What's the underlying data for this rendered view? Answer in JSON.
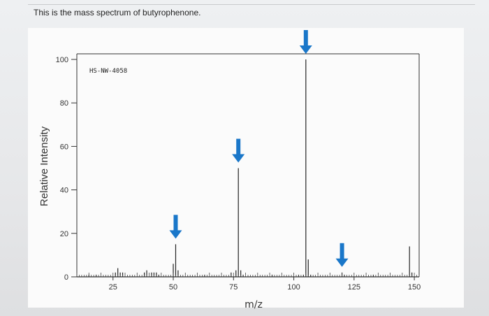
{
  "question": {
    "text": "This is the mass spectrum of butyrophenone."
  },
  "chart_data": {
    "type": "bar",
    "title": "",
    "annotation": "HS-NW-4058",
    "xlabel": "m/z",
    "ylabel": "Relative Intensity",
    "xlim": [
      10,
      152
    ],
    "ylim": [
      0,
      100
    ],
    "x_ticks": [
      25,
      50,
      75,
      100,
      125,
      150
    ],
    "y_ticks": [
      0,
      20,
      40,
      60,
      80,
      100
    ],
    "grid": false,
    "peaks": [
      {
        "mz": 15,
        "intensity": 1
      },
      {
        "mz": 18,
        "intensity": 1
      },
      {
        "mz": 26,
        "intensity": 2
      },
      {
        "mz": 27,
        "intensity": 4
      },
      {
        "mz": 28,
        "intensity": 2
      },
      {
        "mz": 29,
        "intensity": 2
      },
      {
        "mz": 38,
        "intensity": 2
      },
      {
        "mz": 39,
        "intensity": 3
      },
      {
        "mz": 41,
        "intensity": 2
      },
      {
        "mz": 42,
        "intensity": 2
      },
      {
        "mz": 43,
        "intensity": 2
      },
      {
        "mz": 44,
        "intensity": 1
      },
      {
        "mz": 50,
        "intensity": 6
      },
      {
        "mz": 51,
        "intensity": 15
      },
      {
        "mz": 52,
        "intensity": 3
      },
      {
        "mz": 63,
        "intensity": 1
      },
      {
        "mz": 74,
        "intensity": 2
      },
      {
        "mz": 76,
        "intensity": 3
      },
      {
        "mz": 77,
        "intensity": 50
      },
      {
        "mz": 78,
        "intensity": 3
      },
      {
        "mz": 79,
        "intensity": 1
      },
      {
        "mz": 91,
        "intensity": 1
      },
      {
        "mz": 102,
        "intensity": 1
      },
      {
        "mz": 104,
        "intensity": 1
      },
      {
        "mz": 105,
        "intensity": 100
      },
      {
        "mz": 106,
        "intensity": 8
      },
      {
        "mz": 107,
        "intensity": 1
      },
      {
        "mz": 120,
        "intensity": 2
      },
      {
        "mz": 121,
        "intensity": 1
      },
      {
        "mz": 133,
        "intensity": 1
      },
      {
        "mz": 148,
        "intensity": 14
      },
      {
        "mz": 149,
        "intensity": 2
      }
    ],
    "arrows_at_mz": [
      51,
      77,
      105,
      120
    ],
    "arrow_color": "#1a77c9",
    "peak_color": "#222222"
  }
}
